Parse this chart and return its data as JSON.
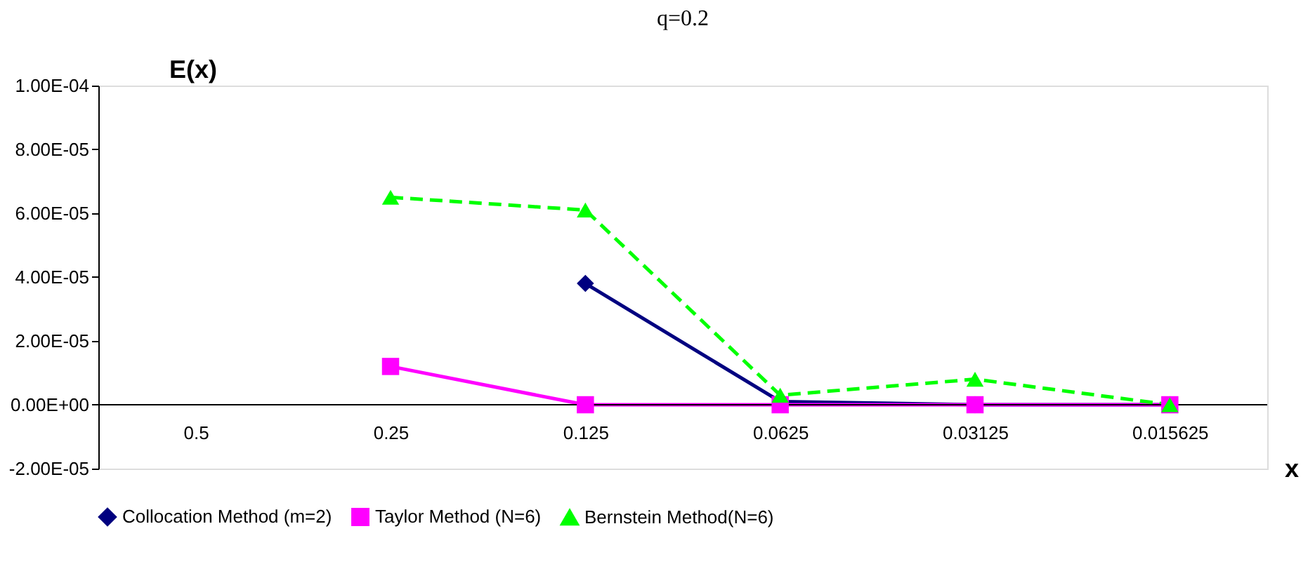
{
  "chart_data": {
    "type": "line",
    "title": "q=0.2",
    "xlabel": "x",
    "ylabel": "E(x)",
    "categories": [
      "0.5",
      "0.25",
      "0.125",
      "0.0625",
      "0.03125",
      "0.015625"
    ],
    "series": [
      {
        "name": "Collocation Method (m=2)",
        "color": "#000080",
        "marker": "diamond",
        "line_style": "solid",
        "values": [
          null,
          null,
          3.8e-05,
          1e-06,
          0,
          0
        ]
      },
      {
        "name": "Taylor Method (N=6)",
        "color": "#ff00ff",
        "marker": "square",
        "line_style": "solid",
        "values": [
          null,
          1.2e-05,
          0,
          0,
          0,
          0
        ]
      },
      {
        "name": "Bernstein Method(N=6)",
        "color": "#00ff00",
        "marker": "triangle",
        "line_style": "dashed",
        "values": [
          null,
          6.5e-05,
          6.1e-05,
          3e-06,
          8e-06,
          0
        ]
      }
    ],
    "ylim": [
      -2e-05,
      0.0001
    ],
    "yticks": [
      {
        "value": -2e-05,
        "label": "-2.00E-05"
      },
      {
        "value": 0,
        "label": "0.00E+00"
      },
      {
        "value": 2e-05,
        "label": "2.00E-05"
      },
      {
        "value": 4e-05,
        "label": "4.00E-05"
      },
      {
        "value": 6e-05,
        "label": "6.00E-05"
      },
      {
        "value": 8e-05,
        "label": "8.00E-05"
      },
      {
        "value": 0.0001,
        "label": "1.00E-04"
      }
    ],
    "grid": false,
    "legend": "bottom"
  }
}
